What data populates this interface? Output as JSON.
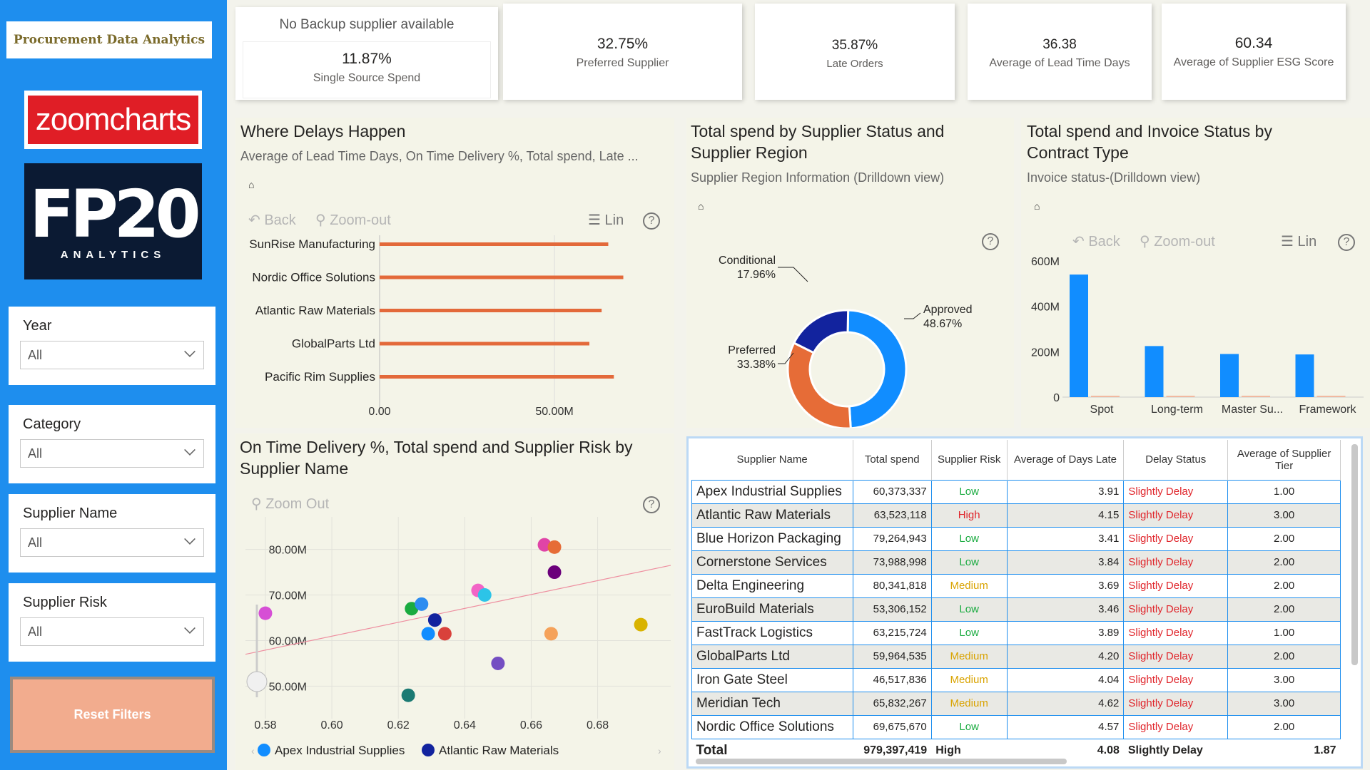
{
  "sidebar": {
    "app_title": "Procurement Data Analytics",
    "logo_zoomcharts": "zoomcharts",
    "logo_fp20_big": "FP20",
    "logo_fp20_small": "ANALYTICS",
    "slicers": [
      {
        "label": "Year",
        "value": "All"
      },
      {
        "label": "Category",
        "value": "All"
      },
      {
        "label": "Supplier Name",
        "value": "All"
      },
      {
        "label": "Supplier Risk",
        "value": "All"
      }
    ],
    "reset_label": "Reset Filters"
  },
  "kpis": {
    "backup_note": "No Backup supplier available",
    "single_source_value": "11.87%",
    "single_source_label": "Single Source Spend",
    "preferred_value": "32.75%",
    "preferred_label": "Preferred Supplier",
    "late_value": "35.87%",
    "late_label": "Late Orders",
    "lead_value": "36.38",
    "lead_label": "Average of Lead Time Days",
    "esg_value": "60.34",
    "esg_label": "Average of Supplier ESG Score"
  },
  "toolbar": {
    "back": "Back",
    "zoom_out": "Zoom-out",
    "lin": "Lin",
    "zoom_out_scatter": "Zoom Out",
    "help": "?"
  },
  "delays": {
    "title": "Where Delays Happen",
    "subtitle": "Average of Lead Time Days, On Time Delivery %, Total spend, Late ...",
    "chart_data": {
      "type": "bar",
      "categories": [
        "SunRise Manufacturing",
        "Nordic Office Solutions",
        "Atlantic Raw Materials",
        "GlobalParts Ltd",
        "Pacific Rim Supplies"
      ],
      "values": [
        65.4,
        69.7,
        63.5,
        60.0,
        67.0
      ],
      "x_ticks": [
        "0.00",
        "50.00M"
      ],
      "xlim": [
        0,
        70
      ],
      "color": "#e3693a"
    }
  },
  "status": {
    "title_line1": "Total spend by Supplier Status and",
    "title_line2": "Supplier Region",
    "subtitle": "Supplier Region Information (Drilldown view)",
    "chart_data": {
      "type": "pie",
      "slices": [
        {
          "name": "Approved",
          "value": 48.67,
          "label": "48.67%",
          "color": "#118dff"
        },
        {
          "name": "Preferred",
          "value": 33.38,
          "label": "33.38%",
          "color": "#e66c37"
        },
        {
          "name": "Conditional",
          "value": 17.96,
          "label": "17.96%",
          "color": "#12239e"
        }
      ]
    }
  },
  "contract": {
    "title_line1": "Total spend and Invoice Status by",
    "title_line2": "Contract Type",
    "subtitle": "Invoice status-(Drilldown view)",
    "chart_data": {
      "type": "bar",
      "categories": [
        "Spot",
        "Long-term",
        "Master Su...",
        "Framework"
      ],
      "values": [
        540,
        225,
        190,
        188
      ],
      "y_ticks": [
        "600M",
        "400M",
        "200M",
        "0"
      ],
      "ylim": [
        0,
        600
      ],
      "color": "#118dff"
    }
  },
  "scatter": {
    "title_line1": "On Time Delivery %, Total spend and Supplier Risk by",
    "title_line2": "Supplier Name",
    "chart_data": {
      "type": "scatter",
      "x_ticks": [
        "0.58",
        "0.60",
        "0.62",
        "0.64",
        "0.66",
        "0.68"
      ],
      "y_ticks": [
        "80.00M",
        "70.00M",
        "60.00M",
        "50.00M"
      ],
      "xlim": [
        0.574,
        0.702
      ],
      "ylim": [
        46,
        84
      ],
      "points": [
        {
          "x": 0.58,
          "y": 66.0,
          "color": "#d64fd5"
        },
        {
          "x": 0.623,
          "y": 48.0,
          "color": "#1b7a73"
        },
        {
          "x": 0.624,
          "y": 67.0,
          "color": "#1aab40"
        },
        {
          "x": 0.627,
          "y": 68.0,
          "color": "#2c8cf0"
        },
        {
          "x": 0.629,
          "y": 61.5,
          "color": "#118dff"
        },
        {
          "x": 0.631,
          "y": 64.5,
          "color": "#12239e"
        },
        {
          "x": 0.634,
          "y": 61.5,
          "color": "#d9413b"
        },
        {
          "x": 0.644,
          "y": 71.0,
          "color": "#f264c6"
        },
        {
          "x": 0.646,
          "y": 70.0,
          "color": "#2cc4e8"
        },
        {
          "x": 0.65,
          "y": 55.0,
          "color": "#744ec2"
        },
        {
          "x": 0.664,
          "y": 81.0,
          "color": "#e044a7"
        },
        {
          "x": 0.667,
          "y": 80.5,
          "color": "#e66c37"
        },
        {
          "x": 0.667,
          "y": 75.0,
          "color": "#6b007b"
        },
        {
          "x": 0.666,
          "y": 61.5,
          "color": "#f5a25a"
        },
        {
          "x": 0.693,
          "y": 63.5,
          "color": "#d9b300"
        }
      ],
      "trend": [
        {
          "x": 0.574,
          "y": 57.0
        },
        {
          "x": 0.702,
          "y": 76.5
        }
      ],
      "legend": [
        {
          "name": "Apex Industrial Supplies",
          "color": "#118dff"
        },
        {
          "name": "Atlantic Raw Materials",
          "color": "#12239e"
        }
      ]
    }
  },
  "table": {
    "headers": [
      "Supplier Name",
      "Total spend",
      "Supplier Risk",
      "Average of Days Late",
      "Delay Status",
      "Average of Supplier Tier"
    ],
    "rows": [
      [
        "Apex Industrial Supplies",
        "60,373,337",
        "Low",
        "3.91",
        "Slightly Delay",
        "1.00"
      ],
      [
        "Atlantic Raw Materials",
        "63,523,118",
        "High",
        "4.15",
        "Slightly Delay",
        "3.00"
      ],
      [
        "Blue Horizon Packaging",
        "79,264,943",
        "Low",
        "3.41",
        "Slightly Delay",
        "2.00"
      ],
      [
        "Cornerstone Services",
        "73,988,998",
        "Low",
        "3.84",
        "Slightly Delay",
        "2.00"
      ],
      [
        "Delta Engineering",
        "80,341,818",
        "Medium",
        "3.69",
        "Slightly Delay",
        "2.00"
      ],
      [
        "EuroBuild Materials",
        "53,306,152",
        "Low",
        "3.46",
        "Slightly Delay",
        "2.00"
      ],
      [
        "FastTrack Logistics",
        "63,215,724",
        "Low",
        "3.89",
        "Slightly Delay",
        "1.00"
      ],
      [
        "GlobalParts Ltd",
        "59,964,535",
        "Medium",
        "4.20",
        "Slightly Delay",
        "2.00"
      ],
      [
        "Iron Gate Steel",
        "46,517,836",
        "Medium",
        "4.04",
        "Slightly Delay",
        "3.00"
      ],
      [
        "Meridian Tech",
        "65,832,267",
        "Medium",
        "4.62",
        "Slightly Delay",
        "3.00"
      ],
      [
        "Nordic Office Solutions",
        "69,675,670",
        "Low",
        "4.57",
        "Slightly Delay",
        "2.00"
      ]
    ],
    "total": [
      "Total",
      "979,397,419",
      "High",
      "4.08",
      "Slightly Delay",
      "1.87"
    ],
    "colors": {
      "Low": "#1aab40",
      "High": "#e0252b",
      "Medium": "#d9a300",
      "delay": "#e0252b"
    }
  }
}
